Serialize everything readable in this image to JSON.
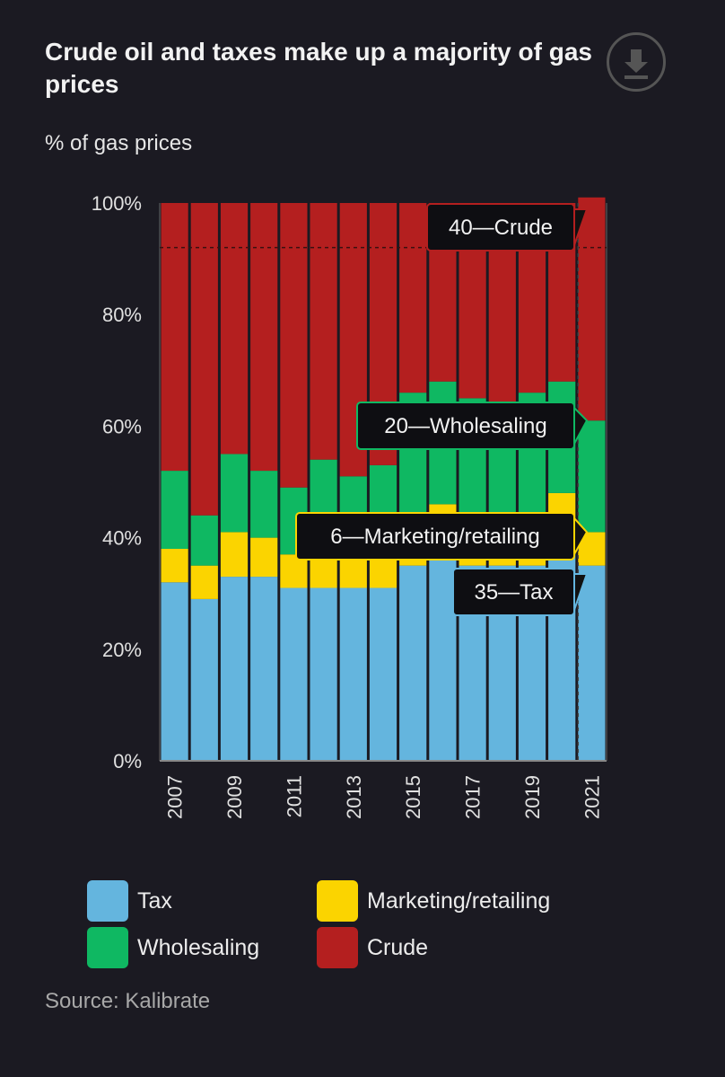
{
  "header": {
    "title": "Crude oil and taxes make up a majority of gas prices",
    "subtitle": "% of gas prices",
    "download_icon": "download-icon"
  },
  "chart_data": {
    "type": "bar",
    "stacked": true,
    "ylabel": "% of gas prices",
    "ylim": [
      0,
      100
    ],
    "y_ticks": [
      "0%",
      "20%",
      "40%",
      "60%",
      "80%",
      "100%"
    ],
    "x": [
      2007,
      2008,
      2009,
      2010,
      2011,
      2012,
      2013,
      2014,
      2015,
      2016,
      2017,
      2018,
      2019,
      2020,
      2021
    ],
    "x_tick_labels": [
      "2007",
      "2009",
      "2011",
      "2013",
      "2015",
      "2017",
      "2019",
      "2021"
    ],
    "series": [
      {
        "name": "Tax",
        "color": "#64b5de",
        "values": [
          32,
          29,
          33,
          33,
          31,
          31,
          31,
          31,
          35,
          36,
          35,
          35,
          35,
          41,
          35
        ]
      },
      {
        "name": "Marketing/retailing",
        "color": "#fbd400",
        "values": [
          6,
          6,
          8,
          7,
          6,
          6,
          6,
          6,
          7,
          10,
          8,
          8,
          9,
          7,
          6
        ]
      },
      {
        "name": "Wholesaling",
        "color": "#0fb862",
        "values": [
          14,
          9,
          14,
          12,
          12,
          17,
          14,
          16,
          24,
          22,
          22,
          21,
          22,
          20,
          20
        ]
      },
      {
        "name": "Crude",
        "color": "#b41f1f",
        "values": [
          48,
          56,
          45,
          48,
          51,
          46,
          49,
          47,
          34,
          32,
          35,
          36,
          34,
          32,
          40
        ]
      }
    ],
    "highlight_year": 2021,
    "grid": false,
    "reference_line": 92,
    "annotations": [
      {
        "series": "Crude",
        "text": "40—Crude",
        "color": "#b41f1f"
      },
      {
        "series": "Wholesaling",
        "text": "20—Wholesaling",
        "color": "#0fb862"
      },
      {
        "series": "Marketing/retailing",
        "text": "6—Marketing/retailing",
        "color": "#fbd400"
      },
      {
        "series": "Tax",
        "text": "35—Tax",
        "color": "#64b5de"
      }
    ],
    "legend_position": "bottom"
  },
  "legend": {
    "items": [
      {
        "label": "Tax",
        "color": "#64b5de"
      },
      {
        "label": "Marketing/retailing",
        "color": "#fbd400"
      },
      {
        "label": "Wholesaling",
        "color": "#0fb862"
      },
      {
        "label": "Crude",
        "color": "#b41f1f"
      }
    ]
  },
  "footer": {
    "source": "Source: Kalibrate"
  }
}
